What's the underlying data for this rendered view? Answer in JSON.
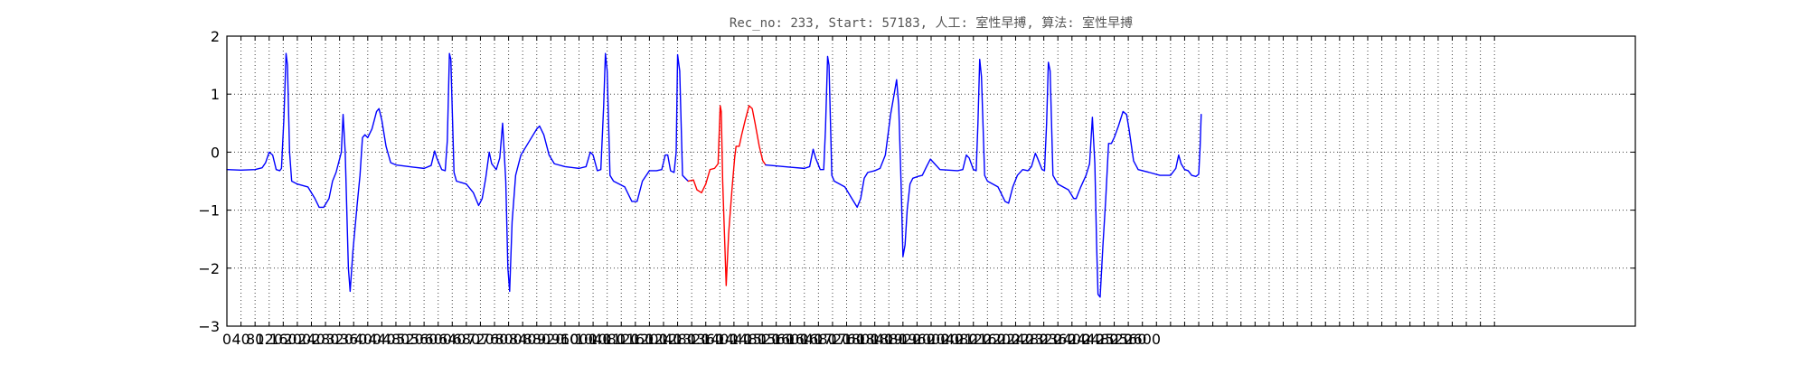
{
  "chart_data": {
    "type": "line",
    "title": "Rec_no: 233, Start: 57183, 人工: 室性早搏, 算法: 室性早搏",
    "xlabel": "",
    "ylabel": "",
    "xlim": [
      0,
      4000
    ],
    "ylim": [
      -3,
      2
    ],
    "grid": true,
    "legend": "none",
    "x_ticks": {
      "start": 0,
      "end": 3600,
      "step": 40,
      "labels": [
        "0",
        "40",
        "80",
        "120",
        "160",
        "200",
        "240",
        "280",
        "320",
        "360",
        "400",
        "440",
        "480",
        "520",
        "560",
        "600",
        "640",
        "680",
        "720",
        "760",
        "800",
        "840",
        "880",
        "920",
        "960",
        "1000",
        "1040",
        "1080",
        "1120",
        "1160",
        "1200",
        "1240",
        "1280",
        "1320",
        "1360",
        "1400",
        "1440",
        "1480",
        "1520",
        "1560",
        "1600",
        "1640",
        "1680",
        "1720",
        "1760",
        "1800",
        "1840",
        "1880",
        "1920",
        "1960",
        "2000",
        "2040",
        "2080",
        "2120",
        "2160",
        "2200",
        "2240",
        "2280",
        "2320",
        "2360",
        "2400",
        "2440",
        "2480",
        "2520",
        "2560",
        "2600"
      ]
    },
    "y_ticks": [
      2,
      1,
      0,
      -1,
      -2,
      -3
    ],
    "y_tick_labels": [
      "2",
      "1",
      "0",
      "−1",
      "−2",
      "−3"
    ],
    "series": [
      {
        "color": "#0000ff",
        "points": [
          [
            0,
            -0.3
          ],
          [
            40,
            -0.31
          ],
          [
            80,
            -0.3
          ],
          [
            100,
            -0.27
          ],
          [
            110,
            -0.18
          ],
          [
            120,
            0.0
          ],
          [
            130,
            -0.05
          ],
          [
            140,
            -0.3
          ],
          [
            150,
            -0.32
          ],
          [
            155,
            -0.28
          ],
          [
            162,
            0.6
          ],
          [
            168,
            1.7
          ],
          [
            172,
            1.5
          ],
          [
            178,
            0.0
          ],
          [
            184,
            -0.5
          ],
          [
            200,
            -0.55
          ],
          [
            230,
            -0.6
          ],
          [
            250,
            -0.8
          ],
          [
            262,
            -0.95
          ],
          [
            275,
            -0.95
          ],
          [
            290,
            -0.8
          ],
          [
            300,
            -0.5
          ],
          [
            310,
            -0.35
          ],
          [
            325,
            0.0
          ],
          [
            330,
            0.65
          ],
          [
            336,
            0.0
          ],
          [
            345,
            -2.0
          ],
          [
            350,
            -2.4
          ],
          [
            358,
            -1.7
          ],
          [
            370,
            -0.9
          ],
          [
            378,
            -0.4
          ],
          [
            385,
            0.25
          ],
          [
            392,
            0.3
          ],
          [
            400,
            0.25
          ],
          [
            412,
            0.4
          ],
          [
            425,
            0.7
          ],
          [
            432,
            0.75
          ],
          [
            440,
            0.55
          ],
          [
            452,
            0.1
          ],
          [
            465,
            -0.18
          ],
          [
            480,
            -0.22
          ],
          [
            530,
            -0.26
          ],
          [
            560,
            -0.28
          ],
          [
            580,
            -0.23
          ],
          [
            590,
            0.02
          ],
          [
            596,
            -0.1
          ],
          [
            610,
            -0.3
          ],
          [
            620,
            -0.32
          ],
          [
            626,
            0.2
          ],
          [
            632,
            1.7
          ],
          [
            636,
            1.6
          ],
          [
            645,
            -0.35
          ],
          [
            652,
            -0.5
          ],
          [
            680,
            -0.55
          ],
          [
            700,
            -0.7
          ],
          [
            715,
            -0.92
          ],
          [
            725,
            -0.8
          ],
          [
            735,
            -0.45
          ],
          [
            745,
            0.0
          ],
          [
            752,
            -0.2
          ],
          [
            765,
            -0.3
          ],
          [
            775,
            -0.1
          ],
          [
            783,
            0.5
          ],
          [
            792,
            -0.5
          ],
          [
            798,
            -2.0
          ],
          [
            803,
            -2.4
          ],
          [
            810,
            -1.2
          ],
          [
            820,
            -0.4
          ],
          [
            835,
            -0.05
          ],
          [
            860,
            0.2
          ],
          [
            880,
            0.4
          ],
          [
            888,
            0.45
          ],
          [
            900,
            0.3
          ],
          [
            915,
            -0.05
          ],
          [
            930,
            -0.2
          ],
          [
            960,
            -0.25
          ],
          [
            1000,
            -0.28
          ],
          [
            1020,
            -0.25
          ],
          [
            1032,
            0.0
          ],
          [
            1040,
            -0.05
          ],
          [
            1052,
            -0.32
          ],
          [
            1062,
            -0.3
          ],
          [
            1070,
            0.8
          ],
          [
            1075,
            1.7
          ],
          [
            1080,
            1.4
          ],
          [
            1088,
            -0.4
          ],
          [
            1098,
            -0.5
          ],
          [
            1130,
            -0.6
          ],
          [
            1150,
            -0.85
          ],
          [
            1165,
            -0.85
          ],
          [
            1180,
            -0.5
          ],
          [
            1200,
            -0.32
          ],
          [
            1220,
            -0.32
          ],
          [
            1235,
            -0.3
          ],
          [
            1245,
            -0.05
          ],
          [
            1252,
            -0.05
          ],
          [
            1260,
            -0.32
          ],
          [
            1270,
            -0.35
          ],
          [
            1276,
            0.0
          ],
          [
            1280,
            1.68
          ],
          [
            1286,
            1.4
          ],
          [
            1294,
            -0.4
          ],
          [
            1310,
            -0.5
          ]
        ],
        "name": ""
      },
      {
        "color": "#ff0000",
        "points": [
          [
            1310,
            -0.5
          ],
          [
            1325,
            -0.48
          ],
          [
            1335,
            -0.65
          ],
          [
            1348,
            -0.7
          ],
          [
            1360,
            -0.55
          ],
          [
            1372,
            -0.3
          ],
          [
            1385,
            -0.28
          ],
          [
            1395,
            -0.2
          ],
          [
            1401,
            0.8
          ],
          [
            1404,
            0.7
          ],
          [
            1408,
            -0.5
          ],
          [
            1418,
            -2.3
          ],
          [
            1425,
            -1.4
          ],
          [
            1435,
            -0.6
          ],
          [
            1442,
            -0.1
          ],
          [
            1446,
            0.1
          ],
          [
            1455,
            0.1
          ],
          [
            1462,
            0.3
          ],
          [
            1472,
            0.55
          ],
          [
            1483,
            0.8
          ],
          [
            1492,
            0.75
          ],
          [
            1500,
            0.5
          ],
          [
            1512,
            0.1
          ],
          [
            1522,
            -0.15
          ],
          [
            1530,
            -0.22
          ]
        ],
        "name": ""
      },
      {
        "color": "#0000ff",
        "points": [
          [
            1530,
            -0.22
          ],
          [
            1600,
            -0.26
          ],
          [
            1640,
            -0.28
          ],
          [
            1655,
            -0.25
          ],
          [
            1665,
            0.05
          ],
          [
            1672,
            -0.1
          ],
          [
            1685,
            -0.3
          ],
          [
            1695,
            -0.3
          ],
          [
            1700,
            0.4
          ],
          [
            1706,
            1.65
          ],
          [
            1710,
            1.5
          ],
          [
            1718,
            -0.4
          ],
          [
            1725,
            -0.5
          ],
          [
            1755,
            -0.6
          ],
          [
            1775,
            -0.8
          ],
          [
            1790,
            -0.95
          ],
          [
            1800,
            -0.8
          ],
          [
            1810,
            -0.45
          ],
          [
            1820,
            -0.35
          ],
          [
            1840,
            -0.32
          ],
          [
            1855,
            -0.28
          ],
          [
            1870,
            -0.05
          ],
          [
            1885,
            0.65
          ],
          [
            1895,
            1.0
          ],
          [
            1902,
            1.25
          ],
          [
            1908,
            0.8
          ],
          [
            1915,
            -0.6
          ],
          [
            1920,
            -1.8
          ],
          [
            1926,
            -1.6
          ],
          [
            1932,
            -1.0
          ],
          [
            1940,
            -0.55
          ],
          [
            1948,
            -0.45
          ],
          [
            1962,
            -0.42
          ],
          [
            1975,
            -0.4
          ],
          [
            1987,
            -0.25
          ],
          [
            1998,
            -0.12
          ],
          [
            2010,
            -0.2
          ],
          [
            2025,
            -0.3
          ],
          [
            2075,
            -0.32
          ],
          [
            2090,
            -0.3
          ],
          [
            2100,
            -0.05
          ],
          [
            2108,
            -0.1
          ],
          [
            2120,
            -0.3
          ],
          [
            2128,
            -0.32
          ],
          [
            2133,
            0.5
          ],
          [
            2138,
            1.6
          ],
          [
            2143,
            1.3
          ],
          [
            2152,
            -0.4
          ],
          [
            2160,
            -0.5
          ],
          [
            2190,
            -0.6
          ],
          [
            2210,
            -0.85
          ],
          [
            2220,
            -0.88
          ],
          [
            2232,
            -0.6
          ],
          [
            2245,
            -0.4
          ],
          [
            2260,
            -0.3
          ],
          [
            2275,
            -0.32
          ],
          [
            2285,
            -0.25
          ],
          [
            2296,
            -0.02
          ],
          [
            2302,
            -0.1
          ],
          [
            2315,
            -0.3
          ],
          [
            2322,
            -0.32
          ],
          [
            2328,
            0.5
          ],
          [
            2333,
            1.55
          ],
          [
            2338,
            1.4
          ],
          [
            2346,
            -0.4
          ],
          [
            2360,
            -0.55
          ],
          [
            2390,
            -0.65
          ],
          [
            2405,
            -0.8
          ],
          [
            2412,
            -0.8
          ],
          [
            2425,
            -0.6
          ],
          [
            2440,
            -0.4
          ],
          [
            2450,
            -0.2
          ],
          [
            2458,
            0.6
          ],
          [
            2465,
            -0.2
          ],
          [
            2470,
            -1.6
          ],
          [
            2474,
            -2.45
          ],
          [
            2480,
            -2.5
          ],
          [
            2488,
            -1.6
          ],
          [
            2496,
            -0.8
          ],
          [
            2504,
            0.15
          ],
          [
            2512,
            0.15
          ],
          [
            2520,
            0.25
          ],
          [
            2532,
            0.45
          ],
          [
            2545,
            0.7
          ],
          [
            2555,
            0.65
          ],
          [
            2562,
            0.4
          ],
          [
            2575,
            -0.15
          ],
          [
            2588,
            -0.3
          ],
          [
            2620,
            -0.35
          ],
          [
            2650,
            -0.4
          ],
          [
            2680,
            -0.4
          ],
          [
            2695,
            -0.28
          ],
          [
            2703,
            -0.05
          ],
          [
            2710,
            -0.2
          ],
          [
            2720,
            -0.3
          ],
          [
            2730,
            -0.32
          ],
          [
            2740,
            -0.4
          ],
          [
            2752,
            -0.42
          ],
          [
            2760,
            -0.38
          ],
          [
            2764,
            0.1
          ],
          [
            2767,
            0.65
          ]
        ],
        "name": ""
      }
    ]
  }
}
